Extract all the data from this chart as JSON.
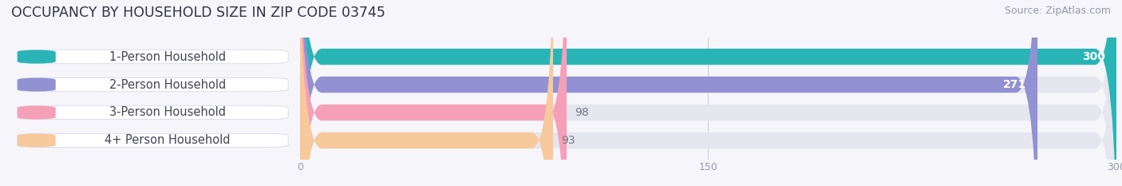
{
  "title": "OCCUPANCY BY HOUSEHOLD SIZE IN ZIP CODE 03745",
  "source": "Source: ZipAtlas.com",
  "categories": [
    "1-Person Household",
    "2-Person Household",
    "3-Person Household",
    "4+ Person Household"
  ],
  "values": [
    300,
    271,
    98,
    93
  ],
  "bar_colors": [
    "#29b5b5",
    "#9191d4",
    "#f5a0b8",
    "#f7c99b"
  ],
  "track_color": "#e6e6ef",
  "xlim": [
    0,
    300
  ],
  "xticks": [
    0,
    150,
    300
  ],
  "background_color": "#f5f5fa",
  "bar_height": 0.58,
  "value_label_color_inside": "#ffffff",
  "value_label_color_outside": "#777788",
  "value_label_fontsize": 10,
  "category_label_fontsize": 10.5,
  "title_fontsize": 12.5,
  "source_fontsize": 9,
  "pill_facecolor": "#ffffff",
  "pill_edgecolor": "#ddddee",
  "axis_tick_color": "#999aaa",
  "gridline_color": "#d0d0dd"
}
